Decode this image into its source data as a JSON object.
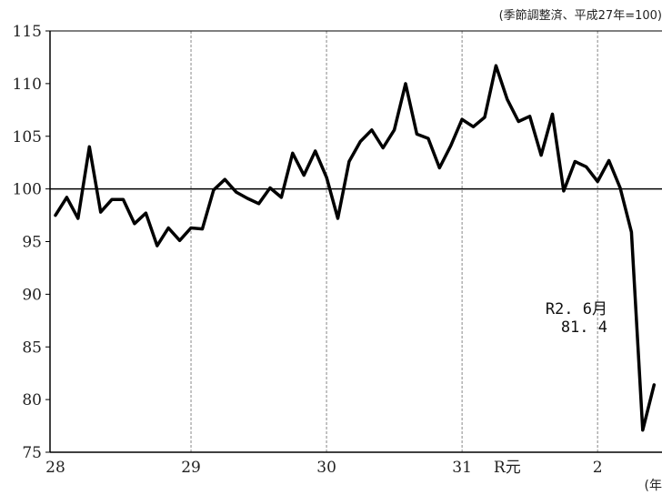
{
  "header": {
    "unit_note": "(季節調整済、平成27年=100)"
  },
  "footer": {
    "year_note": "(年"
  },
  "annotation": {
    "line1": "R2. 6月",
    "line2": "81. 4"
  },
  "chart_data": {
    "type": "line",
    "title": "",
    "xlabel": "",
    "ylabel": "",
    "ylim": [
      75,
      115
    ],
    "yticks": [
      75,
      80,
      85,
      90,
      95,
      100,
      105,
      110,
      115
    ],
    "reference_line": 100,
    "grid": "vertical dashed at each year",
    "x_tick_labels": [
      {
        "label": "28",
        "month_index": 0
      },
      {
        "label": "29",
        "month_index": 12
      },
      {
        "label": "30",
        "month_index": 24
      },
      {
        "label": "31",
        "month_index": 36
      },
      {
        "label": "R元",
        "month_index": 40
      },
      {
        "label": "2",
        "month_index": 48
      }
    ],
    "year_gridlines": [
      12,
      24,
      36,
      48
    ],
    "series": [
      {
        "values": [
          97.5,
          99.2,
          97.2,
          104.0,
          97.8,
          99.0,
          99.0,
          96.7,
          97.7,
          94.6,
          96.3,
          95.1,
          96.3,
          96.2,
          99.9,
          100.9,
          99.7,
          99.1,
          98.6,
          100.1,
          99.2,
          103.4,
          101.3,
          103.6,
          101.1,
          97.2,
          102.6,
          104.5,
          105.6,
          103.9,
          105.6,
          110.0,
          105.2,
          104.8,
          102.0,
          104.1,
          106.6,
          105.9,
          106.8,
          111.7,
          108.5,
          106.4,
          106.9,
          103.2,
          107.1,
          99.8,
          102.6,
          102.1,
          100.7,
          102.7,
          100.1,
          95.9,
          77.1,
          81.4
        ]
      }
    ]
  }
}
